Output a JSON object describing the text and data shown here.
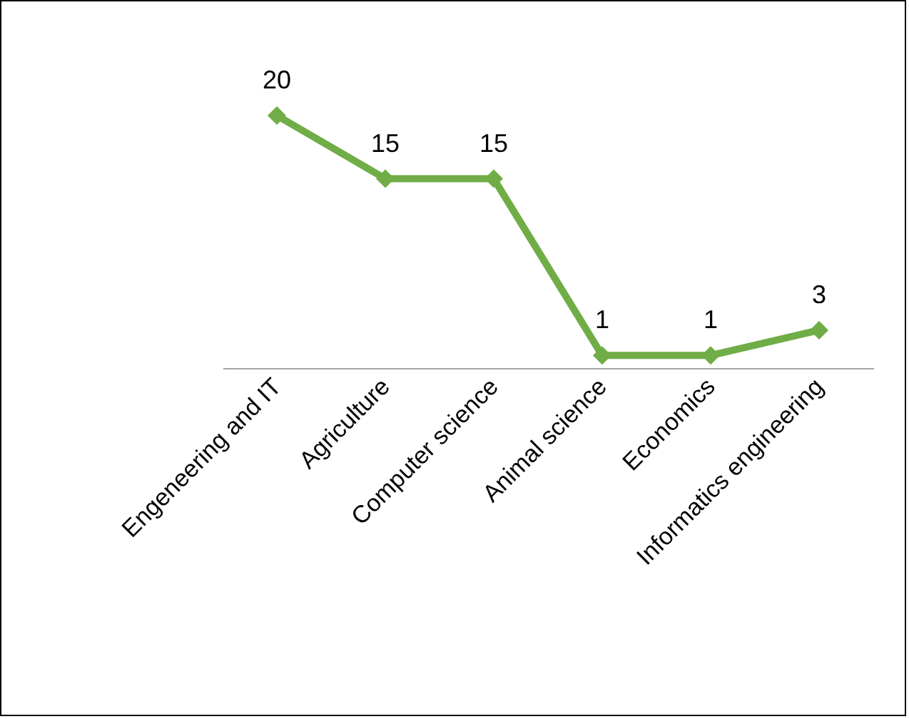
{
  "chart_data": {
    "type": "line",
    "categories": [
      "Engeneering and IT",
      "Agriculture",
      "Computer science",
      "Animal science",
      "Economics",
      "Informatics engineering"
    ],
    "series": [
      {
        "color": "#70ad47",
        "values": [
          20,
          15,
          15,
          1,
          1,
          3
        ]
      }
    ],
    "data_labels": true,
    "marker": "diamond",
    "line_style": "solid"
  }
}
